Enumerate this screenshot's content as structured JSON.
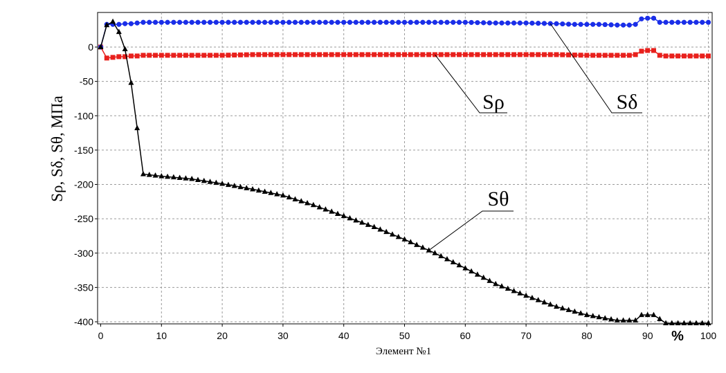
{
  "chart_data": {
    "type": "line",
    "title": "",
    "xlabel": "Элемент №1",
    "ylabel": "Sρ, Sδ, Sθ, МПа",
    "xunit": "%",
    "xlim": [
      0,
      100
    ],
    "ylim": [
      -405,
      45
    ],
    "xticks": [
      0,
      10,
      20,
      30,
      40,
      50,
      60,
      70,
      80,
      90,
      100
    ],
    "yticks": [
      0,
      -50,
      -100,
      -150,
      -200,
      -250,
      -300,
      -350,
      -400
    ],
    "grid": true,
    "legend": "none",
    "series": [
      {
        "name": "Sρ",
        "color": "#e8201c",
        "marker": "square",
        "x": [
          0,
          1,
          2,
          3,
          4,
          5,
          6,
          7,
          8,
          9,
          10,
          15,
          20,
          25,
          30,
          35,
          40,
          45,
          50,
          55,
          60,
          65,
          70,
          75,
          80,
          85,
          87,
          88,
          89,
          90,
          91,
          92,
          93,
          95,
          100
        ],
        "y": [
          0,
          -16,
          -15,
          -14,
          -14,
          -13,
          -13,
          -12,
          -12,
          -12,
          -12,
          -12,
          -12,
          -11,
          -11,
          -11,
          -11,
          -11,
          -11,
          -11,
          -11,
          -11,
          -11,
          -11,
          -12,
          -12,
          -12,
          -11,
          -6,
          -5,
          -5,
          -12,
          -13,
          -13,
          -13
        ]
      },
      {
        "name": "Sδ",
        "color": "#1a2ee8",
        "marker": "circle",
        "x": [
          0,
          1,
          2,
          3,
          4,
          5,
          6,
          7,
          8,
          10,
          15,
          20,
          25,
          30,
          35,
          40,
          45,
          50,
          55,
          60,
          65,
          70,
          75,
          78,
          80,
          82,
          85,
          87,
          88,
          89,
          90,
          91,
          92,
          93,
          95,
          100
        ],
        "y": [
          0,
          33,
          33,
          33,
          34,
          34,
          35,
          36,
          36,
          36,
          36,
          36,
          36,
          36,
          36,
          36,
          36,
          36,
          36,
          36,
          35,
          35,
          34,
          33,
          33,
          33,
          32,
          32,
          33,
          41,
          42,
          42,
          36,
          36,
          36,
          36
        ]
      },
      {
        "name": "Sθ",
        "color": "#000000",
        "marker": "triangle",
        "x": [
          0,
          1,
          2,
          3,
          4,
          5,
          6,
          7,
          10,
          15,
          20,
          25,
          30,
          35,
          40,
          45,
          50,
          55,
          60,
          65,
          70,
          75,
          80,
          85,
          88,
          89,
          90,
          91,
          92,
          93,
          95,
          100
        ],
        "y": [
          0,
          32,
          37,
          22,
          -3,
          -52,
          -118,
          -185,
          -188,
          -192,
          -199,
          -207,
          -216,
          -230,
          -246,
          -262,
          -280,
          -300,
          -322,
          -345,
          -362,
          -378,
          -390,
          -398,
          -398,
          -390,
          -390,
          -390,
          -396,
          -402,
          -402,
          -402
        ]
      }
    ],
    "annotations": [
      {
        "text": "Sρ",
        "series": "Sρ",
        "x": 55
      },
      {
        "text": "Sδ",
        "series": "Sδ",
        "x": 74
      },
      {
        "text": "Sθ",
        "series": "Sθ",
        "x": 54
      }
    ]
  }
}
